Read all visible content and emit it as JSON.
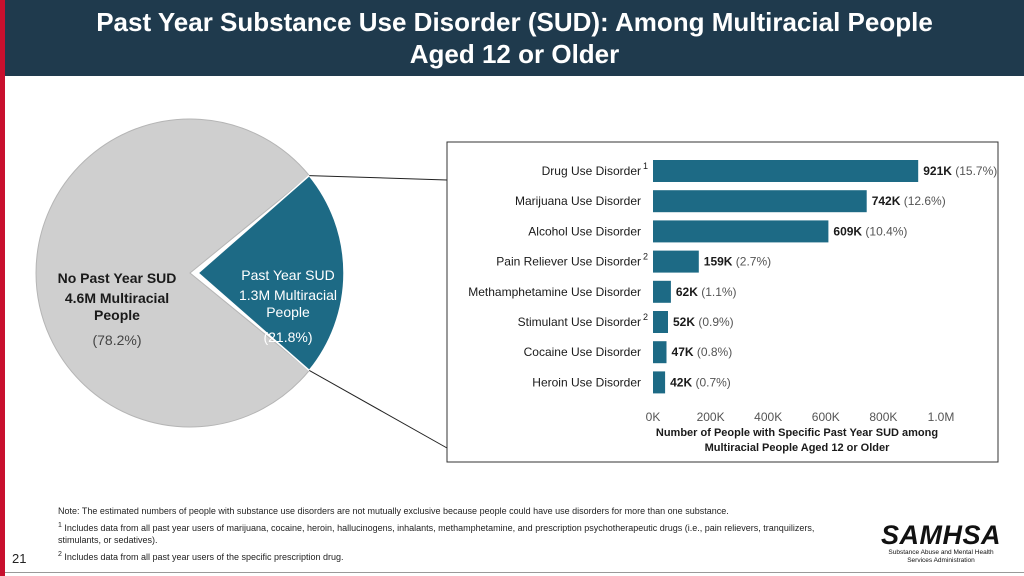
{
  "header": {
    "title_line1": "Past Year Substance Use Disorder (SUD): Among Multiracial People",
    "title_line2": "Aged 12 or Older"
  },
  "colors": {
    "header_bg": "#1f3a4d",
    "accent_red": "#c8102e",
    "sud_teal": "#1d6a85",
    "no_sud_gray": "#cfcfcf",
    "bar_teal": "#1d6a85"
  },
  "chart_data": [
    {
      "type": "pie",
      "slices": [
        {
          "label_line1": "No Past Year SUD",
          "label_line2": "4.6M Multiracial",
          "label_line3": "People",
          "percent_label": "(78.2%)",
          "value": 78.2
        },
        {
          "label_line1": "Past Year SUD",
          "label_line2": "1.3M Multiracial",
          "label_line3": "People",
          "percent_label": "(21.8%)",
          "value": 21.8
        }
      ]
    },
    {
      "type": "bar",
      "orientation": "horizontal",
      "categories": [
        {
          "label": "Drug Use Disorder",
          "footnote": "1"
        },
        {
          "label": "Marijuana Use Disorder",
          "footnote": ""
        },
        {
          "label": "Alcohol Use Disorder",
          "footnote": ""
        },
        {
          "label": "Pain Reliever Use Disorder",
          "footnote": "2"
        },
        {
          "label": "Methamphetamine Use Disorder",
          "footnote": ""
        },
        {
          "label": "Stimulant Use Disorder",
          "footnote": "2"
        },
        {
          "label": "Cocaine Use Disorder",
          "footnote": ""
        },
        {
          "label": "Heroin Use Disorder",
          "footnote": ""
        }
      ],
      "values": [
        921,
        742,
        609,
        159,
        62,
        52,
        47,
        42
      ],
      "value_labels": [
        "921K",
        "742K",
        "609K",
        "159K",
        "62K",
        "52K",
        "47K",
        "42K"
      ],
      "percent_labels": [
        "(15.7%)",
        "(12.6%)",
        "(10.4%)",
        "(2.7%)",
        "(1.1%)",
        "(0.9%)",
        "(0.8%)",
        "(0.7%)"
      ],
      "x_ticks": [
        "0K",
        "200K",
        "400K",
        "600K",
        "800K",
        "1.0M"
      ],
      "xlim": [
        0,
        1000
      ],
      "xlabel_line1": "Number of People with Specific Past Year SUD among",
      "xlabel_line2": "Multiracial People Aged 12 or Older"
    }
  ],
  "notes": {
    "note": "Note: The estimated numbers of people with substance use disorders are not mutually exclusive because people could have use disorders for more than one substance.",
    "footnote1_mark": "1",
    "footnote1": "Includes data from all past year users of marijuana, cocaine, heroin, hallucinogens, inhalants, methamphetamine, and prescription psychotherapeutic drugs (i.e., pain relievers, tranquilizers, stimulants, or sedatives).",
    "footnote2_mark": "2",
    "footnote2": "Includes data from all past year users of the specific prescription drug."
  },
  "page_number": "21",
  "logo": {
    "name": "SAMHSA",
    "subtitle_line1": "Substance Abuse and Mental Health",
    "subtitle_line2": "Services Administration"
  }
}
